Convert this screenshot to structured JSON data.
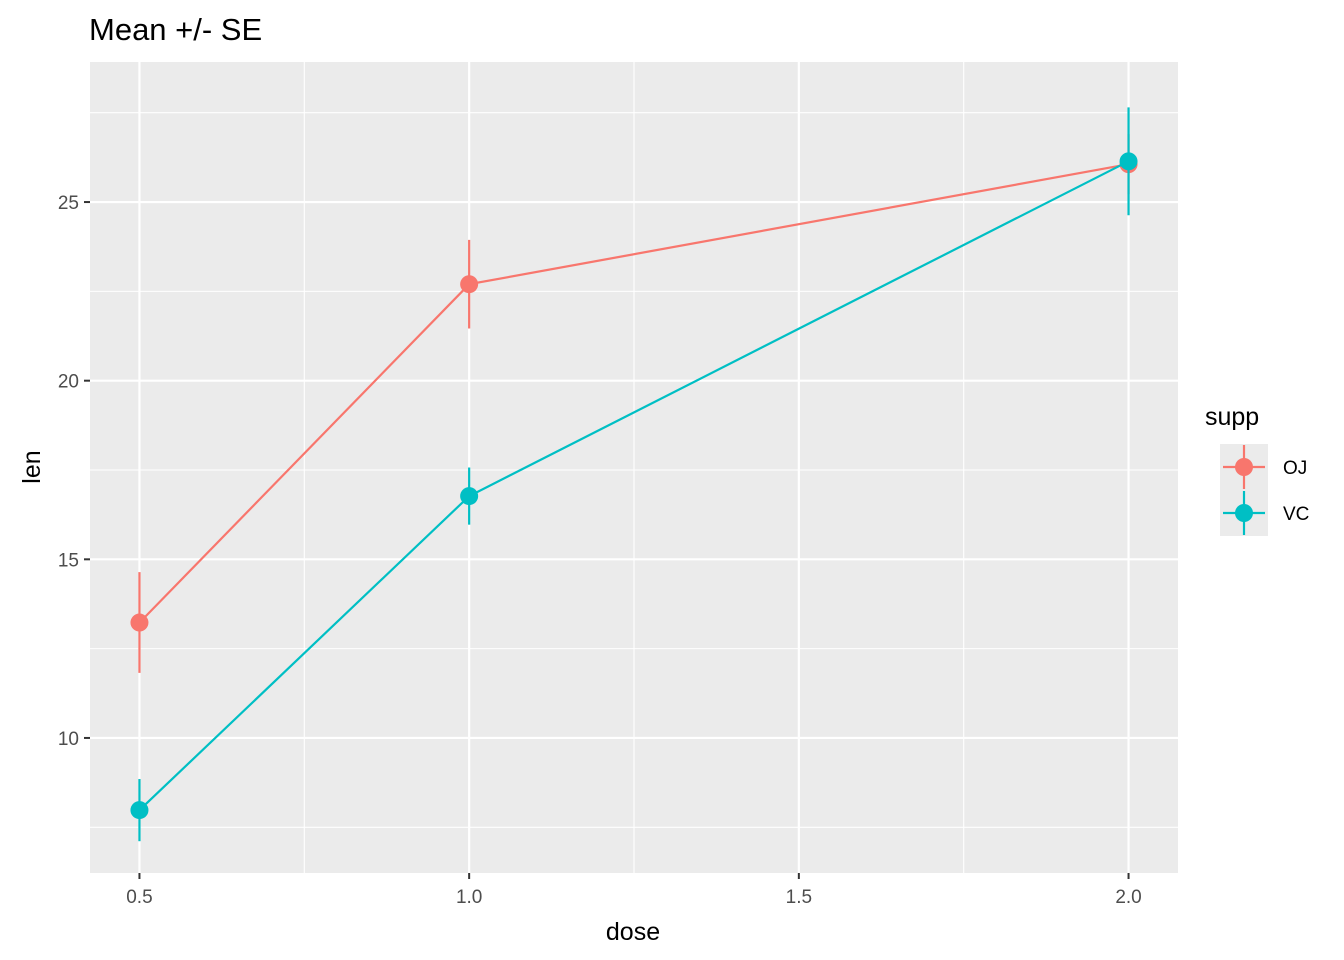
{
  "chart_data": {
    "type": "line",
    "title": "Mean +/- SE",
    "xlabel": "dose",
    "ylabel": "len",
    "x": [
      0.5,
      1.0,
      2.0
    ],
    "x_ticks": [
      0.5,
      1.0,
      1.5,
      2.0
    ],
    "x_tick_labels": [
      "0.5",
      "1.0",
      "1.5",
      "2.0"
    ],
    "y_ticks": [
      10,
      15,
      20,
      25
    ],
    "y_tick_labels": [
      "10",
      "15",
      "20",
      "25"
    ],
    "xlim": [
      0.425,
      2.075
    ],
    "ylim": [
      6.22,
      28.92
    ],
    "grid": true,
    "legend": {
      "title": "supp",
      "position": "right"
    },
    "series": [
      {
        "name": "OJ",
        "color": "#F8766D",
        "values": [
          13.23,
          22.7,
          26.06
        ],
        "se": [
          1.41,
          1.24,
          0.84
        ]
      },
      {
        "name": "VC",
        "color": "#00BFC4",
        "values": [
          7.98,
          16.77,
          26.14
        ],
        "se": [
          0.87,
          0.8,
          1.51
        ]
      }
    ]
  }
}
